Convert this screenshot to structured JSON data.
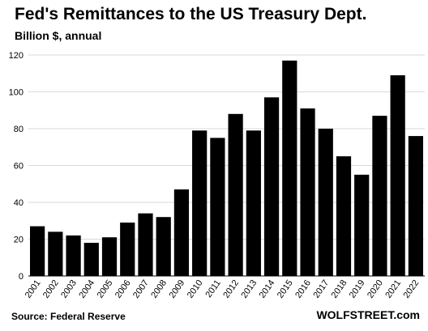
{
  "chart_data": {
    "type": "bar",
    "title": "Fed's Remittances to the US Treasury Dept.",
    "subtitle": "Billion $, annual",
    "source": "Source: Federal Reserve",
    "brand": "WOLFSTREET.com",
    "categories": [
      "2001",
      "2002",
      "2003",
      "2004",
      "2005",
      "2006",
      "2007",
      "2008",
      "2009",
      "2010",
      "2011",
      "2012",
      "2013",
      "2014",
      "2015",
      "2016",
      "2017",
      "2018",
      "2019",
      "2020",
      "2021",
      "2022"
    ],
    "values": [
      27,
      24,
      22,
      18,
      21,
      29,
      34,
      32,
      47,
      79,
      75,
      88,
      79,
      97,
      117,
      91,
      80,
      65,
      55,
      87,
      109,
      76
    ],
    "ylim": [
      0,
      120
    ],
    "yticks": [
      0,
      20,
      40,
      60,
      80,
      100,
      120
    ],
    "grid": true,
    "bar_color": "#000000"
  }
}
